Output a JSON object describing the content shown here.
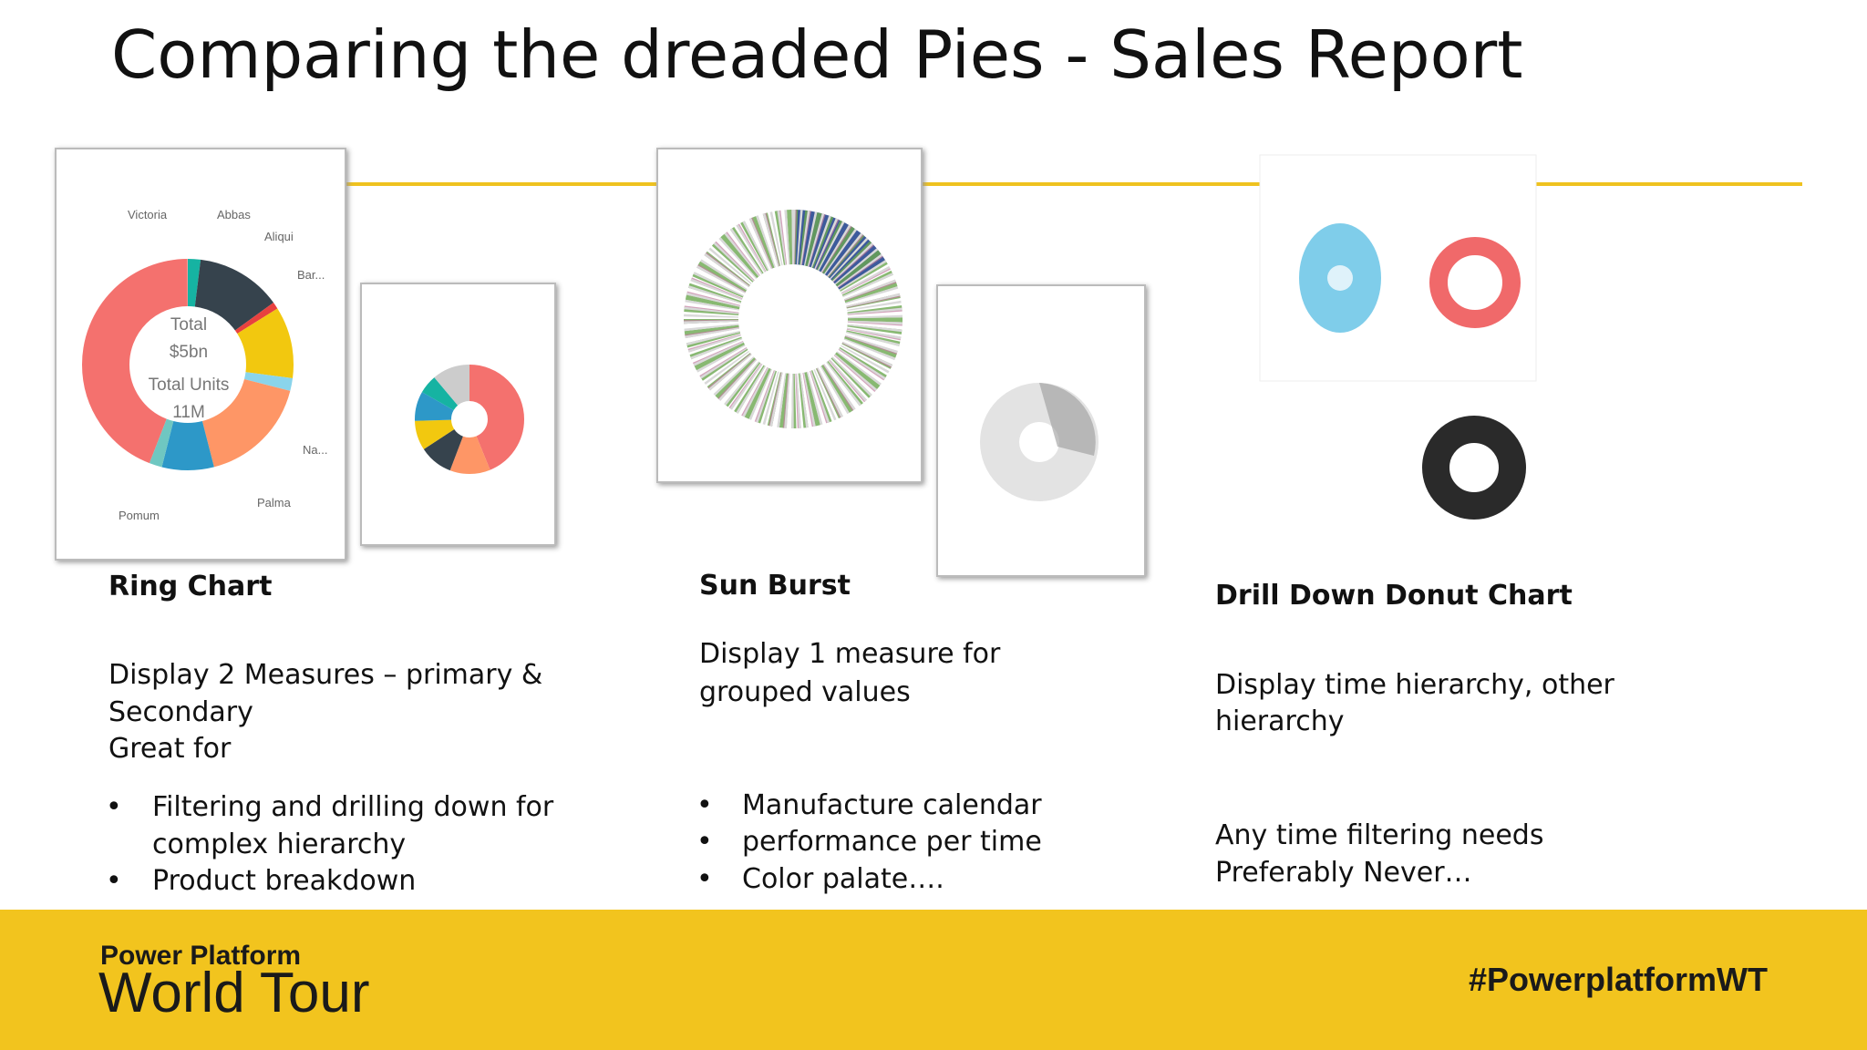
{
  "title": "Comparing the dreaded Pies - Sales Report",
  "ring_thumbnail": {
    "labels": [
      "Victoria",
      "Abbas",
      "Aliqui",
      "Bar...",
      "Na...",
      "Palma",
      "Pomum"
    ],
    "center": [
      "Total",
      "$5bn",
      "Total Units",
      "11M"
    ]
  },
  "columns": [
    {
      "heading": "Ring Chart",
      "description": [
        "Display 2 Measures – primary &",
        "Secondary",
        "Great for"
      ],
      "bullets": [
        [
          "Filtering and drilling down for",
          "complex hierarchy"
        ],
        [
          "Product breakdown"
        ]
      ]
    },
    {
      "heading": "Sun Burst",
      "description": [
        "Display 1 measure for",
        "grouped values"
      ],
      "bullets": [
        [
          "Manufacture calendar"
        ],
        [
          "performance per time"
        ],
        [
          "Color palate…."
        ]
      ]
    },
    {
      "heading": "Drill Down Donut Chart",
      "description": [
        "Display time hierarchy, other",
        "hierarchy"
      ],
      "notes": [
        "Any time filtering needs",
        "Preferably Never…"
      ]
    }
  ],
  "footer": {
    "brand_line1": "Power Platform",
    "brand_line2": "World Tour",
    "hashtag": "#PowerplatformWT"
  }
}
